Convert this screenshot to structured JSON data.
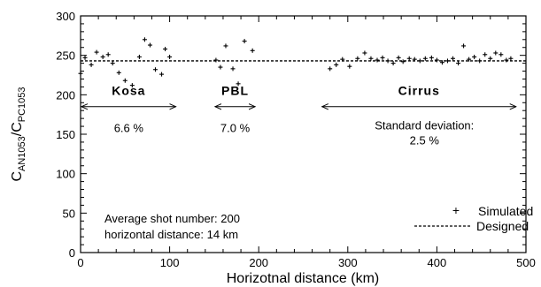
{
  "chart_data": {
    "type": "scatter",
    "xlabel": "Horizotnal distance (km)",
    "ylabel": {
      "base1": "C",
      "sub1": "AN1053",
      "sep": "/",
      "base2": "C",
      "sub2": "PC1053"
    },
    "xlim": [
      0,
      500
    ],
    "ylim": [
      0,
      300
    ],
    "xticks": [
      0,
      100,
      200,
      300,
      400,
      500
    ],
    "yticks": [
      0,
      50,
      100,
      150,
      200,
      250,
      300
    ],
    "grid": false,
    "legend_position": "bottom-right",
    "legend": {
      "simulated": "Simulated",
      "designed": "Designed"
    },
    "designed_value": 243,
    "series": [
      {
        "name": "Simulated",
        "x": [
          0,
          5,
          12,
          18,
          25,
          31,
          36,
          43,
          50,
          58,
          66,
          72,
          78,
          84,
          91,
          95,
          100,
          152,
          157,
          163,
          171,
          177,
          184,
          193,
          280,
          287,
          294,
          302,
          311,
          319,
          326,
          333,
          339,
          345,
          351,
          357,
          362,
          369,
          375,
          381,
          387,
          394,
          400,
          406,
          412,
          418,
          424,
          430,
          436,
          442,
          448,
          454,
          460,
          466,
          472,
          478,
          483
        ],
        "y": [
          227,
          247,
          238,
          254,
          248,
          251,
          240,
          228,
          218,
          212,
          248,
          270,
          263,
          232,
          226,
          258,
          248,
          244,
          235,
          262,
          233,
          214,
          268,
          256,
          233,
          238,
          245,
          236,
          246,
          253,
          246,
          244,
          247,
          243,
          240,
          247,
          242,
          246,
          245,
          243,
          246,
          247,
          244,
          241,
          243,
          246,
          240,
          262,
          245,
          248,
          243,
          251,
          246,
          253,
          251,
          244,
          246
        ]
      }
    ],
    "annotations": {
      "regions": [
        {
          "label": "Kosa",
          "x_start": 0,
          "x_end": 108,
          "percent": "6.6 %"
        },
        {
          "label": "PBL",
          "x_start": 150,
          "x_end": 197,
          "percent": "7.0 %"
        },
        {
          "label": "Cirrus",
          "x_start": 270,
          "x_end": 490,
          "percent": "2.5 %",
          "note": "Standard deviation:"
        }
      ],
      "info_lines": [
        "Average shot number: 200",
        "horizontal distance: 14 km"
      ]
    }
  }
}
